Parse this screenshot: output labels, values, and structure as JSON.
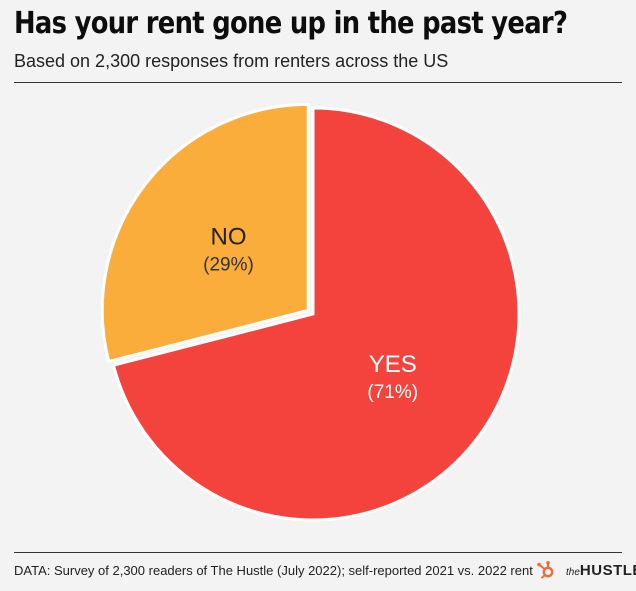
{
  "title": "Has your rent gone up in the past year?",
  "subtitle": "Based on 2,300 responses from renters across the US",
  "source": "DATA: Survey of 2,300 readers of The Hustle (July 2022); self-reported 2021 vs. 2022 rent",
  "logo": {
    "the": "the",
    "hustle": "HUSTLE"
  },
  "colors": {
    "yes": "#f4433d",
    "no": "#fbad3c",
    "background": "#f3f3f3",
    "icon": "#f26b3a"
  },
  "chart_data": {
    "type": "pie",
    "title": "Has your rent gone up in the past year?",
    "slices": [
      {
        "label": "YES",
        "value": 71,
        "display": "(71%)",
        "color": "#f4433d"
      },
      {
        "label": "NO",
        "value": 29,
        "display": "(29%)",
        "color": "#fbad3c"
      }
    ]
  }
}
